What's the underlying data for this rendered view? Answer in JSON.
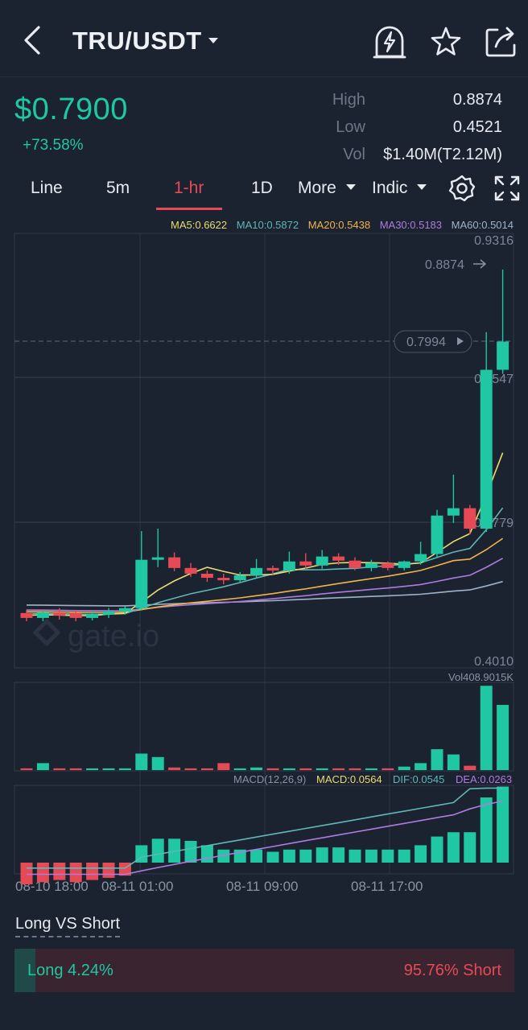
{
  "header": {
    "pair": "TRU/USDT",
    "icons": [
      "back-arrow-icon",
      "lightning-alert-icon",
      "star-icon",
      "share-icon"
    ]
  },
  "ticker": {
    "price": "$0.7900",
    "change": "+73.58%",
    "high_label": "High",
    "high_value": "0.8874",
    "low_label": "Low",
    "low_value": "0.4521",
    "vol_label": "Vol",
    "vol_value": "$1.40M(T2.12M)"
  },
  "tabs": {
    "line": "Line",
    "m5": "5m",
    "h1": "1-hr",
    "d1": "1D",
    "more": "More",
    "indic": "Indic",
    "active": "1-hr"
  },
  "ma_legend": {
    "ma5": "MA5:0.6622",
    "ma10": "MA10:0.5872",
    "ma20": "MA20:0.5438",
    "ma30": "MA30:0.5183",
    "ma60": "MA60:0.5014"
  },
  "colors": {
    "up": "#1fc7a3",
    "down": "#e64a55",
    "ma5": "#e9dc72",
    "ma10": "#5fb7b6",
    "ma20": "#f0b44a",
    "ma30": "#b07be0",
    "ma60": "#9fb3c8"
  },
  "chart_data": {
    "type": "candlestick",
    "price_axis": {
      "max_label": "0.9316",
      "min_label": "0.4010",
      "grid_labels": [
        "0.7547",
        "0.5779"
      ],
      "range": [
        0.401,
        0.9316
      ]
    },
    "high_marker": "0.8874",
    "current_marker": "0.7994",
    "volume_label": "Vol408.9015K",
    "macd_legend": {
      "name": "MACD(12,26,9)",
      "macd": "MACD:0.0564",
      "dif": "DIF:0.0545",
      "dea": "DEA:0.0263"
    },
    "time_labels": [
      "08-10 18:00",
      "08-11 01:00",
      "08-11 09:00",
      "08-11 17:00"
    ],
    "watermark": "gate.io",
    "candles": [
      {
        "o": 0.468,
        "h": 0.472,
        "c": 0.462,
        "l": 0.458
      },
      {
        "o": 0.462,
        "h": 0.47,
        "c": 0.469,
        "l": 0.458
      },
      {
        "o": 0.469,
        "h": 0.474,
        "c": 0.465,
        "l": 0.46
      },
      {
        "o": 0.468,
        "h": 0.472,
        "c": 0.462,
        "l": 0.458
      },
      {
        "o": 0.462,
        "h": 0.47,
        "c": 0.467,
        "l": 0.459
      },
      {
        "o": 0.466,
        "h": 0.474,
        "c": 0.47,
        "l": 0.462
      },
      {
        "o": 0.47,
        "h": 0.476,
        "c": 0.474,
        "l": 0.466
      },
      {
        "o": 0.474,
        "h": 0.568,
        "c": 0.533,
        "l": 0.471
      },
      {
        "o": 0.533,
        "h": 0.571,
        "c": 0.536,
        "l": 0.524
      },
      {
        "o": 0.536,
        "h": 0.542,
        "c": 0.523,
        "l": 0.519
      },
      {
        "o": 0.523,
        "h": 0.529,
        "c": 0.516,
        "l": 0.512
      },
      {
        "o": 0.516,
        "h": 0.52,
        "c": 0.511,
        "l": 0.506
      },
      {
        "o": 0.511,
        "h": 0.516,
        "c": 0.508,
        "l": 0.503
      },
      {
        "o": 0.508,
        "h": 0.518,
        "c": 0.514,
        "l": 0.505
      },
      {
        "o": 0.514,
        "h": 0.534,
        "c": 0.523,
        "l": 0.51
      },
      {
        "o": 0.523,
        "h": 0.526,
        "c": 0.52,
        "l": 0.515
      },
      {
        "o": 0.52,
        "h": 0.543,
        "c": 0.531,
        "l": 0.516
      },
      {
        "o": 0.531,
        "h": 0.541,
        "c": 0.526,
        "l": 0.522
      },
      {
        "o": 0.526,
        "h": 0.545,
        "c": 0.537,
        "l": 0.522
      },
      {
        "o": 0.537,
        "h": 0.541,
        "c": 0.532,
        "l": 0.527
      },
      {
        "o": 0.532,
        "h": 0.536,
        "c": 0.523,
        "l": 0.52
      },
      {
        "o": 0.523,
        "h": 0.533,
        "c": 0.529,
        "l": 0.519
      },
      {
        "o": 0.529,
        "h": 0.531,
        "c": 0.523,
        "l": 0.52
      },
      {
        "o": 0.523,
        "h": 0.532,
        "c": 0.531,
        "l": 0.52
      },
      {
        "o": 0.531,
        "h": 0.555,
        "c": 0.54,
        "l": 0.527
      },
      {
        "o": 0.54,
        "h": 0.594,
        "c": 0.587,
        "l": 0.536
      },
      {
        "o": 0.587,
        "h": 0.637,
        "c": 0.596,
        "l": 0.578
      },
      {
        "o": 0.596,
        "h": 0.6,
        "c": 0.571,
        "l": 0.564
      },
      {
        "o": 0.571,
        "h": 0.811,
        "c": 0.765,
        "l": 0.567
      },
      {
        "o": 0.765,
        "h": 0.8874,
        "c": 0.7994,
        "l": 0.76
      }
    ],
    "volume": [
      0.02,
      0.08,
      0.02,
      0.02,
      0.02,
      0.02,
      0.02,
      0.19,
      0.15,
      0.03,
      0.02,
      0.02,
      0.08,
      0.02,
      0.03,
      0.02,
      0.02,
      0.02,
      0.02,
      0.02,
      0.02,
      0.02,
      0.02,
      0.04,
      0.08,
      0.24,
      0.18,
      0.05,
      0.97,
      0.75
    ],
    "macd_hist": [
      -0.01,
      -0.009,
      -0.008,
      -0.009,
      -0.008,
      -0.007,
      -0.006,
      0.008,
      0.011,
      0.011,
      0.01,
      0.008,
      0.006,
      0.006,
      0.006,
      0.005,
      0.006,
      0.006,
      0.007,
      0.007,
      0.006,
      0.006,
      0.006,
      0.006,
      0.008,
      0.012,
      0.014,
      0.014,
      0.03,
      0.035
    ]
  },
  "long_short": {
    "title": "Long VS Short",
    "long_label": "Long 4.24%",
    "short_label": "95.76% Short",
    "long_pct": 4.24,
    "short_pct": 95.76
  }
}
